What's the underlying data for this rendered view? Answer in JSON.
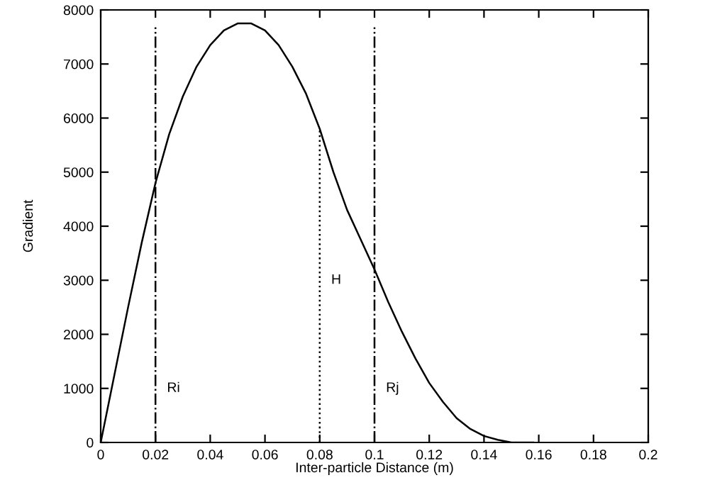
{
  "chart_data": {
    "type": "line",
    "xlabel": "Inter-particle Distance (m)",
    "ylabel": "Gradient",
    "x": [
      0,
      0.005,
      0.01,
      0.015,
      0.02,
      0.025,
      0.03,
      0.035,
      0.04,
      0.045,
      0.05,
      0.055,
      0.06,
      0.065,
      0.07,
      0.075,
      0.08,
      0.085,
      0.09,
      0.095,
      0.1,
      0.105,
      0.11,
      0.115,
      0.12,
      0.125,
      0.13,
      0.135,
      0.14,
      0.145,
      0.15,
      0.155,
      0.158
    ],
    "series": [
      {
        "color": "#000000",
        "values": [
          0,
          1250,
          2500,
          3700,
          4800,
          5700,
          6400,
          6950,
          7350,
          7620,
          7750,
          7750,
          7620,
          7350,
          6950,
          6450,
          5800,
          5000,
          4300,
          3750,
          3200,
          2600,
          2050,
          1550,
          1100,
          750,
          450,
          250,
          120,
          50,
          0,
          0,
          0
        ]
      }
    ],
    "xlim": [
      0,
      0.2
    ],
    "xticks": [
      0,
      0.02,
      0.04,
      0.06,
      0.08,
      0.1,
      0.12,
      0.14,
      0.16,
      0.18,
      0.2
    ],
    "ylim": [
      0,
      8000
    ],
    "yticks": [
      0,
      1000,
      2000,
      3000,
      4000,
      5000,
      6000,
      7000,
      8000
    ],
    "ref_lines": [
      {
        "axis": "x",
        "value": 0.02,
        "line_style": "dashdot",
        "color": "#000000",
        "label": "Ri"
      },
      {
        "axis": "x",
        "value": 0.08,
        "line_style": "dotted",
        "color": "#000000",
        "label": "H"
      },
      {
        "axis": "x",
        "value": 0.1,
        "line_style": "dashdot",
        "color": "#000000",
        "label": "Rj"
      }
    ],
    "grid": false,
    "legend": false,
    "marker": "none",
    "line_style": "solid"
  }
}
